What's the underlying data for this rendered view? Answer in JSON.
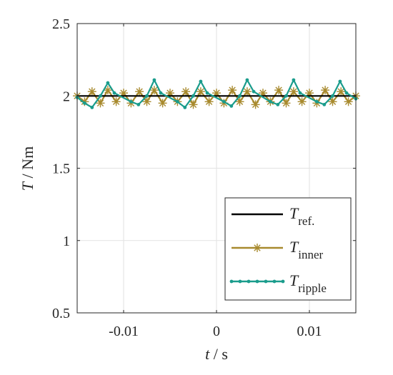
{
  "chart_data": {
    "type": "line",
    "title": "",
    "xlabel": {
      "var": "t",
      "unit": "s"
    },
    "ylabel": {
      "var": "T",
      "unit": "Nm"
    },
    "xlim": [
      -0.015,
      0.015
    ],
    "ylim": [
      0.5,
      2.5
    ],
    "xticks": [
      -0.01,
      0,
      0.01
    ],
    "xtick_labels": [
      "-0.01",
      "0",
      "0.01"
    ],
    "yticks": [
      0.5,
      1,
      1.5,
      2,
      2.5
    ],
    "ytick_labels": [
      "0.5",
      "1",
      "1.5",
      "2",
      "2.5"
    ],
    "grid": true,
    "legend_position": "bottom-right",
    "series": [
      {
        "name": "T_ref.",
        "label_main": "T",
        "label_sub": "ref.",
        "color": "#000000",
        "marker": "none",
        "x": [
          -0.015,
          0.015
        ],
        "y": [
          2.0,
          2.0
        ]
      },
      {
        "name": "T_inner",
        "label_main": "T",
        "label_sub": "inner",
        "color": "#A88A2E",
        "marker": "asterisk",
        "x": [
          -0.015,
          -0.0142,
          -0.0134,
          -0.0125,
          -0.0117,
          -0.0108,
          -0.01,
          -0.0092,
          -0.0083,
          -0.0075,
          -0.0067,
          -0.0058,
          -0.005,
          -0.0042,
          -0.0033,
          -0.0025,
          -0.0017,
          -0.0008,
          0.0,
          0.0008,
          0.0017,
          0.0025,
          0.0033,
          0.0042,
          0.005,
          0.0058,
          0.0067,
          0.0075,
          0.0083,
          0.0092,
          0.01,
          0.0108,
          0.0117,
          0.0125,
          0.0134,
          0.0142,
          0.015
        ],
        "y": [
          2.0,
          1.96,
          2.03,
          1.95,
          2.04,
          1.96,
          2.02,
          1.95,
          2.03,
          1.96,
          2.04,
          1.95,
          2.02,
          1.96,
          2.03,
          1.94,
          2.03,
          1.96,
          2.02,
          1.95,
          2.04,
          1.96,
          2.03,
          1.94,
          2.02,
          1.96,
          2.04,
          1.95,
          2.03,
          1.96,
          2.02,
          1.95,
          2.04,
          1.96,
          2.03,
          1.96,
          2.0
        ]
      },
      {
        "name": "T_ripple",
        "label_main": "T",
        "label_sub": "ripple",
        "color": "#1A9C8C",
        "marker": "dot",
        "x": [
          -0.015,
          -0.0142,
          -0.0134,
          -0.0125,
          -0.0117,
          -0.011,
          -0.0092,
          -0.0084,
          -0.0075,
          -0.0067,
          -0.006,
          -0.0042,
          -0.0034,
          -0.0025,
          -0.0017,
          -0.001,
          0.0008,
          0.0016,
          0.0025,
          0.0033,
          0.004,
          0.0058,
          0.0066,
          0.0075,
          0.0083,
          0.009,
          0.0108,
          0.0116,
          0.0125,
          0.0133,
          0.014,
          0.015
        ],
        "y": [
          1.99,
          1.95,
          1.92,
          2.0,
          2.09,
          2.02,
          1.96,
          1.94,
          2.0,
          2.11,
          2.02,
          1.96,
          1.92,
          2.0,
          2.1,
          2.02,
          1.96,
          1.93,
          2.0,
          2.11,
          2.03,
          1.96,
          1.94,
          2.0,
          2.11,
          2.02,
          1.96,
          1.94,
          2.0,
          2.1,
          2.02,
          1.98
        ]
      }
    ]
  }
}
